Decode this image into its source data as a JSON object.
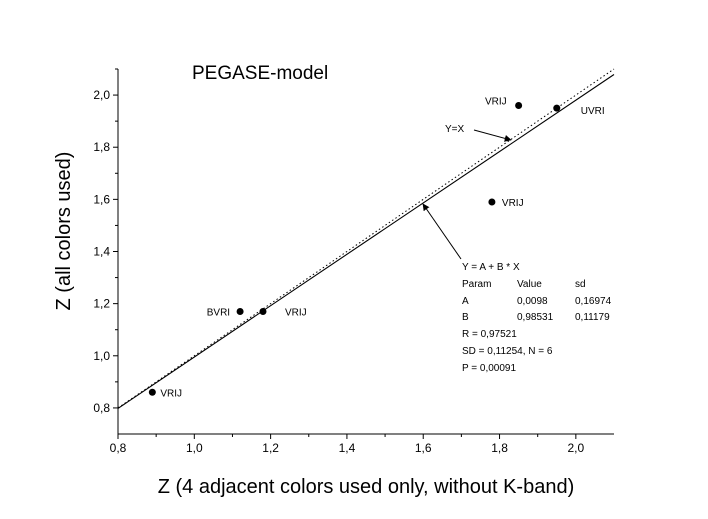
{
  "chart_data": {
    "type": "scatter",
    "title": "PEGASE-model",
    "xlabel": "Z (4 adjacent colors used only, without K-band)",
    "ylabel": "Z (all colors used)",
    "xlim": [
      0.8,
      2.1
    ],
    "ylim": [
      0.7,
      2.1
    ],
    "x_ticks": [
      "0,8",
      "1,0",
      "1,2",
      "1,4",
      "1,6",
      "1,8",
      "2,0"
    ],
    "x_tick_values": [
      0.8,
      1.0,
      1.2,
      1.4,
      1.6,
      1.8,
      2.0
    ],
    "y_ticks": [
      "0,8",
      "1,0",
      "1,2",
      "1,4",
      "1,6",
      "1,8",
      "2,0"
    ],
    "y_tick_values": [
      0.8,
      1.0,
      1.2,
      1.4,
      1.6,
      1.8,
      2.0
    ],
    "grid": false,
    "points": [
      {
        "x": 0.89,
        "y": 0.86,
        "label": "VRIJ"
      },
      {
        "x": 1.12,
        "y": 1.17,
        "label": "BVRI"
      },
      {
        "x": 1.18,
        "y": 1.17,
        "label": "VRIJ"
      },
      {
        "x": 1.78,
        "y": 1.59,
        "label": "VRIJ"
      },
      {
        "x": 1.85,
        "y": 1.96,
        "label": "VRIJ"
      },
      {
        "x": 1.95,
        "y": 1.95,
        "label": "UVRI"
      }
    ],
    "fit": {
      "A": 0.0098,
      "B": 0.98531
    },
    "identity_label": "Y=X",
    "fit_stats": [
      "Y = A + B * X",
      [
        "Param",
        "Value",
        "sd"
      ],
      [
        "A",
        "0,0098",
        "0,16974"
      ],
      [
        "B",
        "0,98531",
        "0,11179"
      ],
      "R = 0,97521",
      "SD = 0,11254, N = 6",
      "P = 0,00091"
    ]
  }
}
